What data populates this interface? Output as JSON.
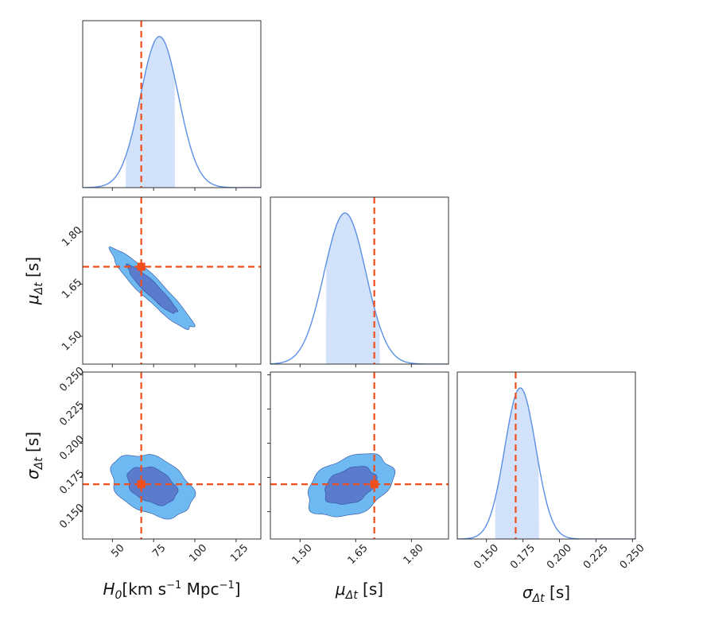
{
  "chart_data": {
    "type": "corner",
    "parameters": [
      {
        "key": "H0",
        "label_symbol": "H",
        "label_sub": "0",
        "label_unit": "[km s",
        "label_unit_sup1": "−1",
        "label_unit_mid": " Mpc",
        "label_unit_sup2": "−1",
        "label_unit_end": "]",
        "range": [
          32,
          140
        ],
        "ticks": [
          50,
          75,
          100,
          125
        ],
        "tick_labels": [
          "50",
          "75",
          "100",
          "125"
        ]
      },
      {
        "key": "mu_dt",
        "label_symbol": "μ",
        "label_sub": "Δt",
        "label_unit": " [s]",
        "range": [
          1.42,
          1.9
        ],
        "ticks": [
          1.5,
          1.65,
          1.8
        ],
        "tick_labels": [
          "1.50",
          "1.65",
          "1.80"
        ]
      },
      {
        "key": "sigma_dt",
        "label_symbol": "σ",
        "label_sub": "Δt",
        "label_unit": " [s]",
        "range": [
          0.13,
          0.252
        ],
        "ticks": [
          0.15,
          0.175,
          0.2,
          0.225,
          0.25
        ],
        "tick_labels": [
          "0.150",
          "0.175",
          "0.200",
          "0.225",
          "0.250"
        ]
      }
    ],
    "truth": {
      "H0": 67.5,
      "mu_dt": 1.7,
      "sigma_dt": 0.17
    },
    "marginals": [
      {
        "param": "H0",
        "mean": 74,
        "sd": 12.5,
        "skew": 0.5,
        "interval": [
          58,
          88
        ]
      },
      {
        "param": "mu_dt",
        "mean": 1.635,
        "sd": 0.058,
        "skew": -0.3,
        "interval": [
          1.57,
          1.715
        ]
      },
      {
        "param": "sigma_dt",
        "mean": 0.169,
        "sd": 0.0115,
        "skew": 0.5,
        "interval": [
          0.156,
          0.186
        ]
      }
    ],
    "joint": [
      {
        "x": "H0",
        "y": "mu_dt",
        "rho": -0.93,
        "level_sigma": [
          1.2,
          2.0
        ]
      },
      {
        "x": "H0",
        "y": "sigma_dt",
        "rho": -0.35,
        "level_sigma": [
          1.2,
          2.0
        ]
      },
      {
        "x": "mu_dt",
        "y": "sigma_dt",
        "rho": 0.35,
        "level_sigma": [
          1.2,
          2.0
        ]
      }
    ],
    "colors": {
      "line": "#5b8fe6",
      "interval_fill": "#d3e2fb",
      "contour_outer": "#6fb9f2",
      "contour_inner": "#5b7ccd",
      "contour_edge": "#2f4f9f",
      "truth": "#f04e1a"
    }
  }
}
